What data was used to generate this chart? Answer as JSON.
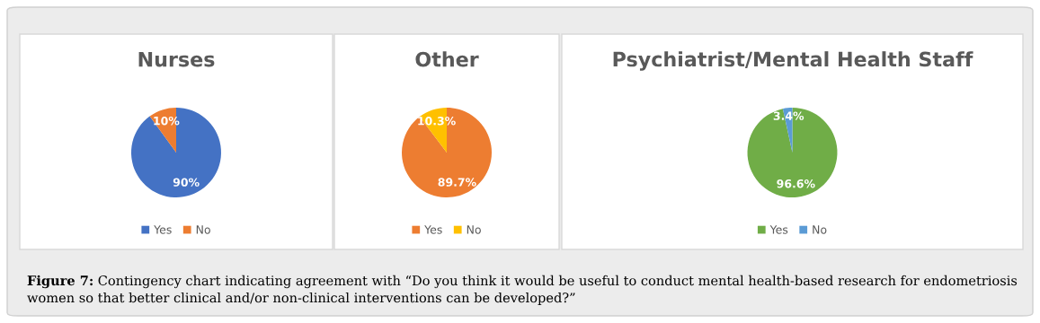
{
  "chart_data": [
    {
      "type": "pie",
      "title": "Nurses",
      "categories": [
        "Yes",
        "No"
      ],
      "values": [
        90,
        10
      ],
      "colors": [
        "#4472c4",
        "#ed7d31"
      ],
      "value_labels": [
        "90%",
        "10%"
      ],
      "legend": "bottom",
      "annotations": [
        "Figure 7:",
        "Contingency chart indicating agreement with “Do you think it would be useful to conduct mental health-based research for endometriosis",
        "women so that better clinical and/or non-clinical interventions can be developed?”"
      ]
    },
    {
      "type": "pie",
      "title": "Other",
      "categories": [
        "Yes",
        "No"
      ],
      "values": [
        89.7,
        10.3
      ],
      "colors": [
        "#ed7d31",
        "#ffc000"
      ],
      "value_labels": [
        "89.7%",
        "10.3%"
      ],
      "legend": "bottom"
    },
    {
      "type": "pie",
      "title": "Psychiatrist/Mental Health Staff",
      "categories": [
        "Yes",
        "No"
      ],
      "values": [
        96.6,
        3.4
      ],
      "colors": [
        "#70ad47",
        "#5b9bd5"
      ],
      "value_labels": [
        "96.6%",
        "3.4%"
      ],
      "legend": "bottom"
    }
  ]
}
